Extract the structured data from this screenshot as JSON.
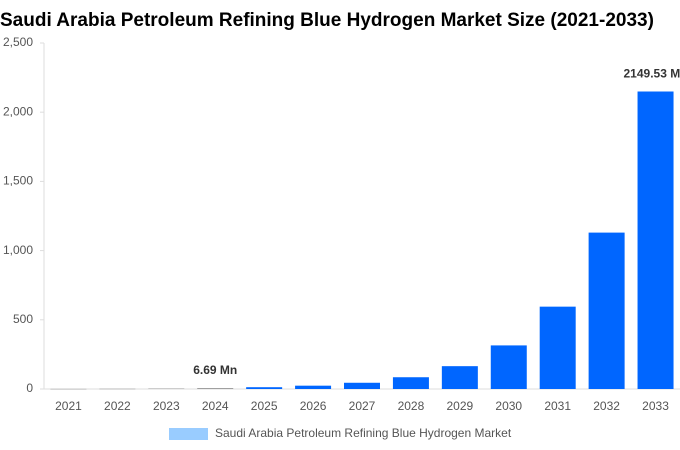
{
  "chart_data": {
    "type": "bar",
    "title": "Saudi Arabia Petroleum Refining Blue Hydrogen Market Size (2021-2033)",
    "categories": [
      "2021",
      "2022",
      "2023",
      "2024",
      "2025",
      "2026",
      "2027",
      "2028",
      "2029",
      "2030",
      "2031",
      "2032",
      "2033"
    ],
    "series": [
      {
        "name": "Saudi Arabia Petroleum Refining Blue Hydrogen Market",
        "color": "#99ccff",
        "values": [
          1,
          2,
          3.5,
          6.69,
          13,
          24,
          45,
          85,
          165,
          315,
          595,
          1130,
          2149.53
        ],
        "value_labels": [
          null,
          null,
          null,
          "6.69 Mn",
          null,
          null,
          null,
          null,
          null,
          null,
          null,
          null,
          "2149.53 Mn"
        ],
        "bar_colors": [
          "#999999",
          "#999999",
          "#999999",
          "#999999",
          "#0066ff",
          "#0066ff",
          "#0066ff",
          "#0066ff",
          "#0066ff",
          "#0066ff",
          "#0066ff",
          "#0066ff",
          "#0066ff"
        ]
      }
    ],
    "ylim": [
      0,
      2500
    ],
    "yticks": [
      0,
      500,
      {
        "value": 1000,
        "label": "1,000"
      },
      {
        "value": 1500,
        "label": "1,500"
      },
      {
        "value": 2000,
        "label": "2,000"
      },
      {
        "value": 2500,
        "label": "2,500"
      }
    ],
    "grid": false
  }
}
